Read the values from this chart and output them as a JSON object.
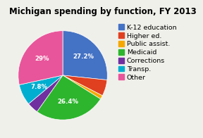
{
  "title": "Michigan spending by function, FY 2013",
  "labels": [
    "K-12 education",
    "Higher ed.",
    "Public assist.",
    "Medicaid",
    "Corrections",
    "Transp.",
    "Other"
  ],
  "values": [
    27.2,
    6.0,
    1.4,
    26.4,
    4.2,
    7.8,
    29.0
  ],
  "colors": [
    "#4472C4",
    "#E04020",
    "#F5A800",
    "#2DB52D",
    "#7030A0",
    "#00AECF",
    "#E8559A"
  ],
  "pct_labels": [
    "27.2%",
    "",
    "",
    "26.4%",
    "",
    "7.8%",
    "29%"
  ],
  "pct_r": [
    0.62,
    0,
    0,
    0.6,
    0,
    0.6,
    0.6
  ],
  "title_fontsize": 8.5,
  "legend_fontsize": 6.8,
  "bg_color": "#f0f0eb"
}
